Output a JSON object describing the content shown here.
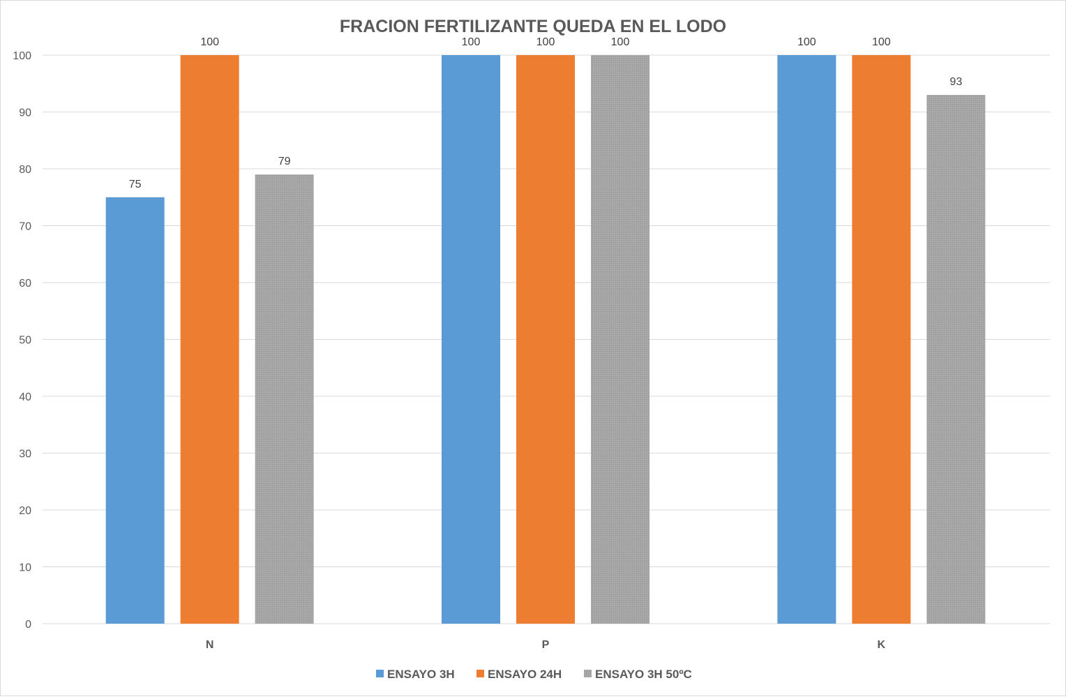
{
  "chart_data": {
    "type": "bar",
    "title": "FRACION FERTILIZANTE QUEDA EN EL LODO",
    "xlabel": "",
    "ylabel": "",
    "ylim": [
      0,
      100
    ],
    "yticks": [
      0,
      10,
      20,
      30,
      40,
      50,
      60,
      70,
      80,
      90,
      100
    ],
    "grid": true,
    "legend_position": "bottom",
    "categories": [
      "N",
      "P",
      "K"
    ],
    "series": [
      {
        "name": "ENSAYO 3H",
        "color": "#5b9bd5",
        "values": [
          75,
          100,
          100
        ]
      },
      {
        "name": "ENSAYO 24H",
        "color": "#ed7d31",
        "values": [
          100,
          100,
          100
        ]
      },
      {
        "name": "ENSAYO 3H 50ºC",
        "color": "#a5a5a5",
        "values": [
          79,
          100,
          93
        ]
      }
    ]
  }
}
